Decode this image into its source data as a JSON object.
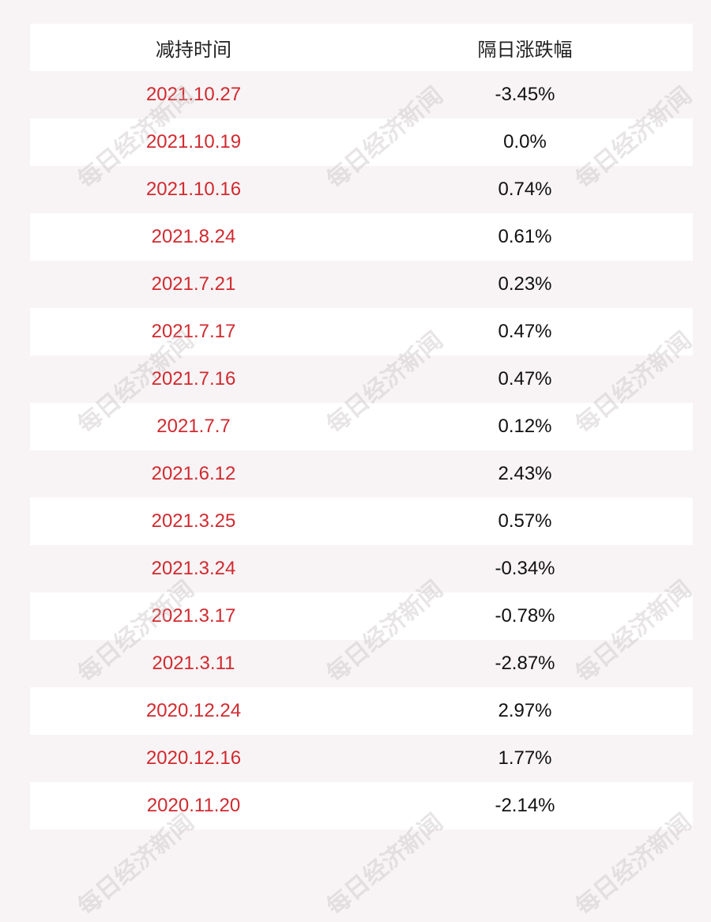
{
  "watermark": "每日经济新闻",
  "table": {
    "header": [
      "减持时间",
      "隔日涨跌幅"
    ],
    "rows": [
      [
        "2021.10.27",
        "-3.45%"
      ],
      [
        "2021.10.19",
        "0.0%"
      ],
      [
        "2021.10.16",
        "0.74%"
      ],
      [
        "2021.8.24",
        "0.61%"
      ],
      [
        "2021.7.21",
        "0.23%"
      ],
      [
        "2021.7.17",
        "0.47%"
      ],
      [
        "2021.7.16",
        "0.47%"
      ],
      [
        "2021.7.7",
        "0.12%"
      ],
      [
        "2021.6.12",
        "2.43%"
      ],
      [
        "2021.3.25",
        "0.57%"
      ],
      [
        "2021.3.24",
        "-0.34%"
      ],
      [
        "2021.3.17",
        "-0.78%"
      ],
      [
        "2021.3.11",
        "-2.87%"
      ],
      [
        "2020.12.24",
        "2.97%"
      ],
      [
        "2020.12.16",
        "1.77%"
      ],
      [
        "2020.11.20",
        "-2.14%"
      ]
    ]
  }
}
